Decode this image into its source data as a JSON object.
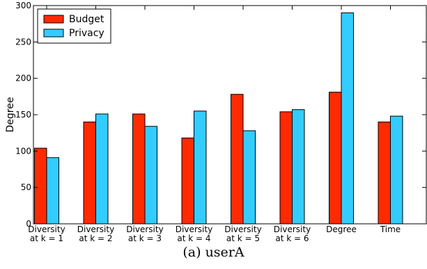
{
  "caption": "(a) userA",
  "chart_data": {
    "type": "bar",
    "categories": [
      [
        "Diversity",
        "at k = 1"
      ],
      [
        "Diversity",
        "at k = 2"
      ],
      [
        "Diversity",
        "at k = 3"
      ],
      [
        "Diversity",
        "at k = 4"
      ],
      [
        "Diversity",
        "at k = 5"
      ],
      [
        "Diversity",
        "at k = 6"
      ],
      [
        "Degree"
      ],
      [
        "Time"
      ]
    ],
    "series": [
      {
        "name": "Budget",
        "color": "#ff2a00",
        "values": [
          104,
          140,
          151,
          118,
          178,
          154,
          181,
          140
        ]
      },
      {
        "name": "Privacy",
        "color": "#33ccff",
        "values": [
          91,
          151,
          134,
          155,
          128,
          157,
          290,
          148
        ]
      }
    ],
    "ylabel": "Degree",
    "xlabel": "",
    "ylim": [
      0,
      300
    ],
    "yticks": [
      0,
      50,
      100,
      150,
      200,
      250,
      300
    ],
    "grid": false,
    "legend": "top-left"
  }
}
